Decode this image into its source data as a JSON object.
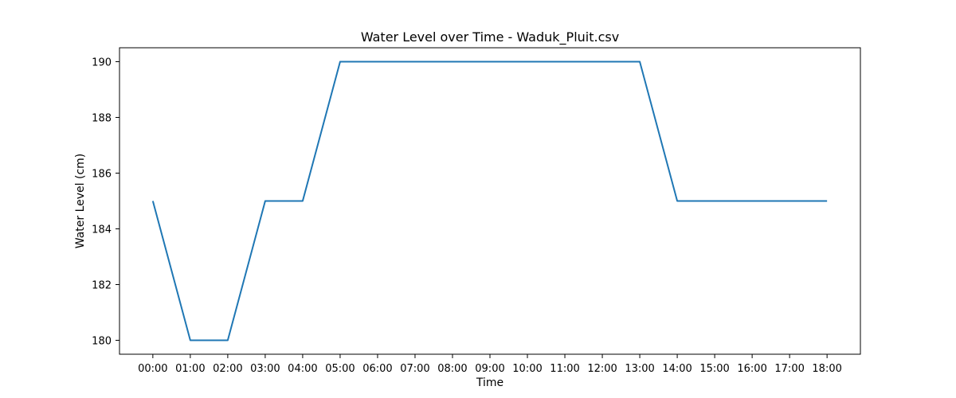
{
  "chart_data": {
    "type": "line",
    "title": "Water Level over Time - Waduk_Pluit.csv",
    "xlabel": "Time",
    "ylabel": "Water Level (cm)",
    "x": [
      "00:00",
      "01:00",
      "02:00",
      "03:00",
      "04:00",
      "05:00",
      "06:00",
      "07:00",
      "08:00",
      "09:00",
      "10:00",
      "11:00",
      "12:00",
      "13:00",
      "14:00",
      "15:00",
      "16:00",
      "17:00",
      "18:00"
    ],
    "y_ticks": [
      180,
      182,
      184,
      186,
      188,
      190
    ],
    "ylim": [
      179.5,
      190.5
    ],
    "grid": false,
    "series": [
      {
        "values": [
          185,
          180,
          180,
          185,
          185,
          190,
          190,
          190,
          190,
          190,
          190,
          190,
          190,
          190,
          185,
          185,
          185,
          185,
          185
        ],
        "color": "#1f77b4"
      }
    ]
  }
}
